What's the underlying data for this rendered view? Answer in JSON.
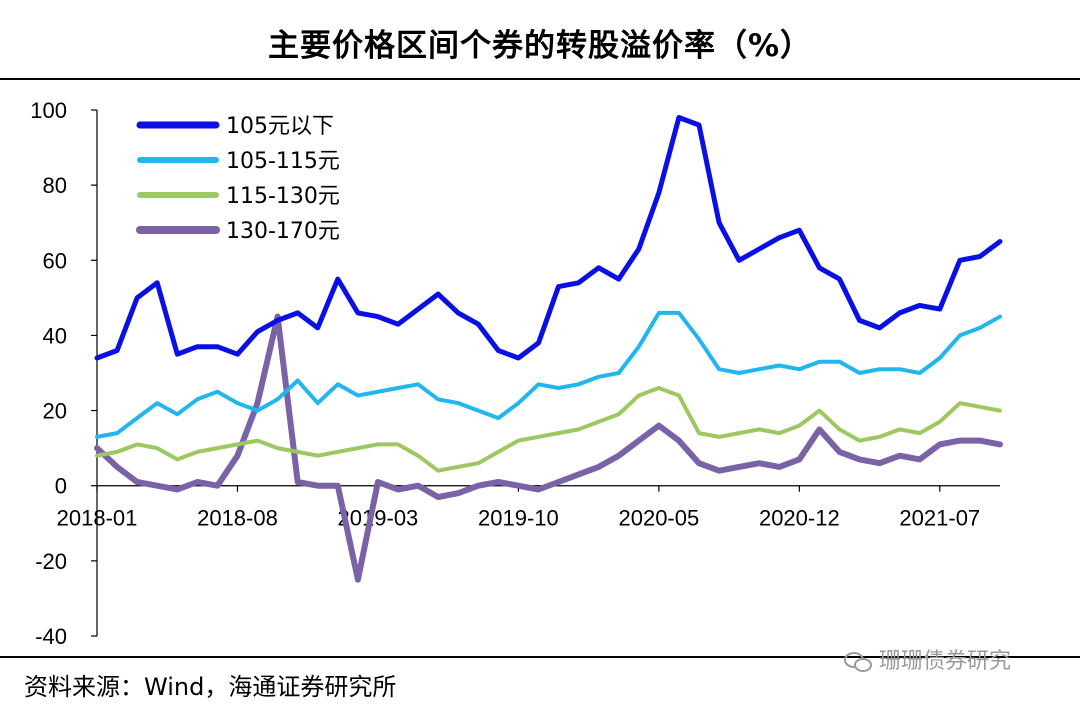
{
  "title": "主要价格区间个券的转股溢价率（%）",
  "source": "资料来源：Wind，海通证券研究所",
  "watermark": "珊珊债券研究",
  "chart_data": {
    "type": "line",
    "title": "主要价格区间个券的转股溢价率（%）",
    "ylim": [
      -40,
      100
    ],
    "y_ticks": [
      100,
      80,
      60,
      40,
      20,
      0,
      -20,
      -40
    ],
    "x_tick_labels": [
      "2018-01",
      "2018-08",
      "2019-03",
      "2019-10",
      "2020-05",
      "2020-12",
      "2021-07"
    ],
    "x_range": [
      "2018-01",
      "2021-10"
    ],
    "grid": false,
    "legend_position": "top-left",
    "series": [
      {
        "name": "105元以下",
        "color": "#0a0fe6",
        "points": [
          [
            "2018-01",
            34
          ],
          [
            "2018-02",
            36
          ],
          [
            "2018-03",
            50
          ],
          [
            "2018-04",
            54
          ],
          [
            "2018-05",
            35
          ],
          [
            "2018-06",
            37
          ],
          [
            "2018-07",
            37
          ],
          [
            "2018-08",
            35
          ],
          [
            "2018-09",
            41
          ],
          [
            "2018-10",
            44
          ],
          [
            "2018-11",
            46
          ],
          [
            "2018-12",
            42
          ],
          [
            "2019-01",
            55
          ],
          [
            "2019-02",
            46
          ],
          [
            "2019-03",
            45
          ],
          [
            "2019-04",
            43
          ],
          [
            "2019-05",
            47
          ],
          [
            "2019-06",
            51
          ],
          [
            "2019-07",
            46
          ],
          [
            "2019-08",
            43
          ],
          [
            "2019-09",
            36
          ],
          [
            "2019-10",
            34
          ],
          [
            "2019-11",
            38
          ],
          [
            "2019-12",
            53
          ],
          [
            "2020-01",
            54
          ],
          [
            "2020-02",
            58
          ],
          [
            "2020-03",
            55
          ],
          [
            "2020-04",
            63
          ],
          [
            "2020-05",
            78
          ],
          [
            "2020-06",
            98
          ],
          [
            "2020-07",
            96
          ],
          [
            "2020-08",
            70
          ],
          [
            "2020-09",
            60
          ],
          [
            "2020-10",
            63
          ],
          [
            "2020-11",
            66
          ],
          [
            "2020-12",
            68
          ],
          [
            "2021-01",
            58
          ],
          [
            "2021-02",
            55
          ],
          [
            "2021-03",
            44
          ],
          [
            "2021-04",
            42
          ],
          [
            "2021-05",
            46
          ],
          [
            "2021-06",
            48
          ],
          [
            "2021-07",
            47
          ],
          [
            "2021-08",
            60
          ],
          [
            "2021-09",
            61
          ],
          [
            "2021-10",
            65
          ]
        ]
      },
      {
        "name": "105-115元",
        "color": "#22b6ee",
        "points": [
          [
            "2018-01",
            13
          ],
          [
            "2018-02",
            14
          ],
          [
            "2018-03",
            18
          ],
          [
            "2018-04",
            22
          ],
          [
            "2018-05",
            19
          ],
          [
            "2018-06",
            23
          ],
          [
            "2018-07",
            25
          ],
          [
            "2018-08",
            22
          ],
          [
            "2018-09",
            20
          ],
          [
            "2018-10",
            23
          ],
          [
            "2018-11",
            28
          ],
          [
            "2018-12",
            22
          ],
          [
            "2019-01",
            27
          ],
          [
            "2019-02",
            24
          ],
          [
            "2019-03",
            25
          ],
          [
            "2019-04",
            26
          ],
          [
            "2019-05",
            27
          ],
          [
            "2019-06",
            23
          ],
          [
            "2019-07",
            22
          ],
          [
            "2019-08",
            20
          ],
          [
            "2019-09",
            18
          ],
          [
            "2019-10",
            22
          ],
          [
            "2019-11",
            27
          ],
          [
            "2019-12",
            26
          ],
          [
            "2020-01",
            27
          ],
          [
            "2020-02",
            29
          ],
          [
            "2020-03",
            30
          ],
          [
            "2020-04",
            37
          ],
          [
            "2020-05",
            46
          ],
          [
            "2020-06",
            46
          ],
          [
            "2020-07",
            39
          ],
          [
            "2020-08",
            31
          ],
          [
            "2020-09",
            30
          ],
          [
            "2020-10",
            31
          ],
          [
            "2020-11",
            32
          ],
          [
            "2020-12",
            31
          ],
          [
            "2021-01",
            33
          ],
          [
            "2021-02",
            33
          ],
          [
            "2021-03",
            30
          ],
          [
            "2021-04",
            31
          ],
          [
            "2021-05",
            31
          ],
          [
            "2021-06",
            30
          ],
          [
            "2021-07",
            34
          ],
          [
            "2021-08",
            40
          ],
          [
            "2021-09",
            42
          ],
          [
            "2021-10",
            45
          ]
        ]
      },
      {
        "name": "115-130元",
        "color": "#9cc861",
        "points": [
          [
            "2018-01",
            8
          ],
          [
            "2018-02",
            9
          ],
          [
            "2018-03",
            11
          ],
          [
            "2018-04",
            10
          ],
          [
            "2018-05",
            7
          ],
          [
            "2018-06",
            9
          ],
          [
            "2018-07",
            10
          ],
          [
            "2018-08",
            11
          ],
          [
            "2018-09",
            12
          ],
          [
            "2018-10",
            10
          ],
          [
            "2018-11",
            9
          ],
          [
            "2018-12",
            8
          ],
          [
            "2019-01",
            9
          ],
          [
            "2019-02",
            10
          ],
          [
            "2019-03",
            11
          ],
          [
            "2019-04",
            11
          ],
          [
            "2019-05",
            8
          ],
          [
            "2019-06",
            4
          ],
          [
            "2019-07",
            5
          ],
          [
            "2019-08",
            6
          ],
          [
            "2019-09",
            9
          ],
          [
            "2019-10",
            12
          ],
          [
            "2019-11",
            13
          ],
          [
            "2019-12",
            14
          ],
          [
            "2020-01",
            15
          ],
          [
            "2020-02",
            17
          ],
          [
            "2020-03",
            19
          ],
          [
            "2020-04",
            24
          ],
          [
            "2020-05",
            26
          ],
          [
            "2020-06",
            24
          ],
          [
            "2020-07",
            14
          ],
          [
            "2020-08",
            13
          ],
          [
            "2020-09",
            14
          ],
          [
            "2020-10",
            15
          ],
          [
            "2020-11",
            14
          ],
          [
            "2020-12",
            16
          ],
          [
            "2021-01",
            20
          ],
          [
            "2021-02",
            15
          ],
          [
            "2021-03",
            12
          ],
          [
            "2021-04",
            13
          ],
          [
            "2021-05",
            15
          ],
          [
            "2021-06",
            14
          ],
          [
            "2021-07",
            17
          ],
          [
            "2021-08",
            22
          ],
          [
            "2021-09",
            21
          ],
          [
            "2021-10",
            20
          ]
        ]
      },
      {
        "name": "130-170元",
        "color": "#7a62a6",
        "points": [
          [
            "2018-01",
            10
          ],
          [
            "2018-02",
            5
          ],
          [
            "2018-03",
            1
          ],
          [
            "2018-04",
            0
          ],
          [
            "2018-05",
            -1
          ],
          [
            "2018-06",
            1
          ],
          [
            "2018-07",
            0
          ],
          [
            "2018-08",
            8
          ],
          [
            "2018-09",
            22
          ],
          [
            "2018-10",
            45
          ],
          [
            "2018-11",
            1
          ],
          [
            "2018-12",
            0
          ],
          [
            "2019-01",
            0
          ],
          [
            "2019-02",
            -25
          ],
          [
            "2019-03",
            1
          ],
          [
            "2019-04",
            -1
          ],
          [
            "2019-05",
            0
          ],
          [
            "2019-06",
            -3
          ],
          [
            "2019-07",
            -2
          ],
          [
            "2019-08",
            0
          ],
          [
            "2019-09",
            1
          ],
          [
            "2019-10",
            0
          ],
          [
            "2019-11",
            -1
          ],
          [
            "2019-12",
            1
          ],
          [
            "2020-01",
            3
          ],
          [
            "2020-02",
            5
          ],
          [
            "2020-03",
            8
          ],
          [
            "2020-04",
            12
          ],
          [
            "2020-05",
            16
          ],
          [
            "2020-06",
            12
          ],
          [
            "2020-07",
            6
          ],
          [
            "2020-08",
            4
          ],
          [
            "2020-09",
            5
          ],
          [
            "2020-10",
            6
          ],
          [
            "2020-11",
            5
          ],
          [
            "2020-12",
            7
          ],
          [
            "2021-01",
            15
          ],
          [
            "2021-02",
            9
          ],
          [
            "2021-03",
            7
          ],
          [
            "2021-04",
            6
          ],
          [
            "2021-05",
            8
          ],
          [
            "2021-06",
            7
          ],
          [
            "2021-07",
            11
          ],
          [
            "2021-08",
            12
          ],
          [
            "2021-09",
            12
          ],
          [
            "2021-10",
            11
          ]
        ]
      }
    ]
  }
}
